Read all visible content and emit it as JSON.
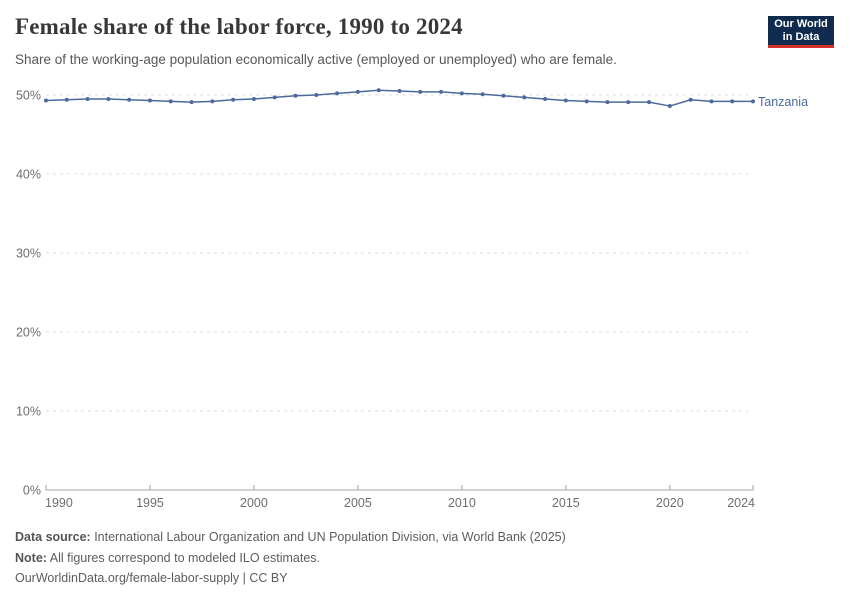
{
  "header": {
    "title": "Female share of the labor force, 1990 to 2024",
    "subtitle": "Share of the working-age population economically active (employed or unemployed) who are female.",
    "logo": {
      "line1": "Our World",
      "line2": "in Data"
    }
  },
  "chart_data": {
    "type": "line",
    "title": "Female share of the labor force, 1990 to 2024",
    "xlabel": "",
    "ylabel": "",
    "xlim": [
      1990,
      2024
    ],
    "ylim": [
      0,
      50
    ],
    "grid": "horizontal dashed",
    "legend_position": "end-of-line label",
    "x_ticks": [
      1990,
      1995,
      2000,
      2005,
      2010,
      2015,
      2020,
      2024
    ],
    "x_tick_labels": [
      "1990",
      "1995",
      "2000",
      "2005",
      "2010",
      "2015",
      "2020",
      "2024"
    ],
    "y_ticks": [
      0,
      10,
      20,
      30,
      40,
      50
    ],
    "y_tick_labels": [
      "0%",
      "10%",
      "20%",
      "30%",
      "40%",
      "50%"
    ],
    "series": [
      {
        "name": "Tanzania",
        "color": "#4c6a9c",
        "x": [
          1990,
          1991,
          1992,
          1993,
          1994,
          1995,
          1996,
          1997,
          1998,
          1999,
          2000,
          2001,
          2002,
          2003,
          2004,
          2005,
          2006,
          2007,
          2008,
          2009,
          2010,
          2011,
          2012,
          2013,
          2014,
          2015,
          2016,
          2017,
          2018,
          2019,
          2020,
          2021,
          2022,
          2023,
          2024
        ],
        "values": [
          49.3,
          49.4,
          49.5,
          49.5,
          49.4,
          49.3,
          49.2,
          49.1,
          49.2,
          49.4,
          49.5,
          49.7,
          49.9,
          50.0,
          50.2,
          50.4,
          50.6,
          50.5,
          50.4,
          50.4,
          50.2,
          50.1,
          49.9,
          49.7,
          49.5,
          49.3,
          49.2,
          49.1,
          49.1,
          49.1,
          48.6,
          49.4,
          49.2,
          49.2,
          49.2
        ]
      }
    ]
  },
  "footer": {
    "datasource_label": "Data source:",
    "datasource_text": " International Labour Organization and UN Population Division, via World Bank (2025)",
    "note_label": "Note:",
    "note_text": " All figures correspond to modeled ILO estimates.",
    "url_line": "OurWorldinData.org/female-labor-supply | CC BY"
  },
  "colors": {
    "series": "#4c6a9c",
    "grid": "#dcdcdc",
    "axis_line": "#a3a3a3",
    "axis_text": "#6e6e6e",
    "logo_bg": "#102b4e",
    "logo_bar": "#d4302c"
  }
}
